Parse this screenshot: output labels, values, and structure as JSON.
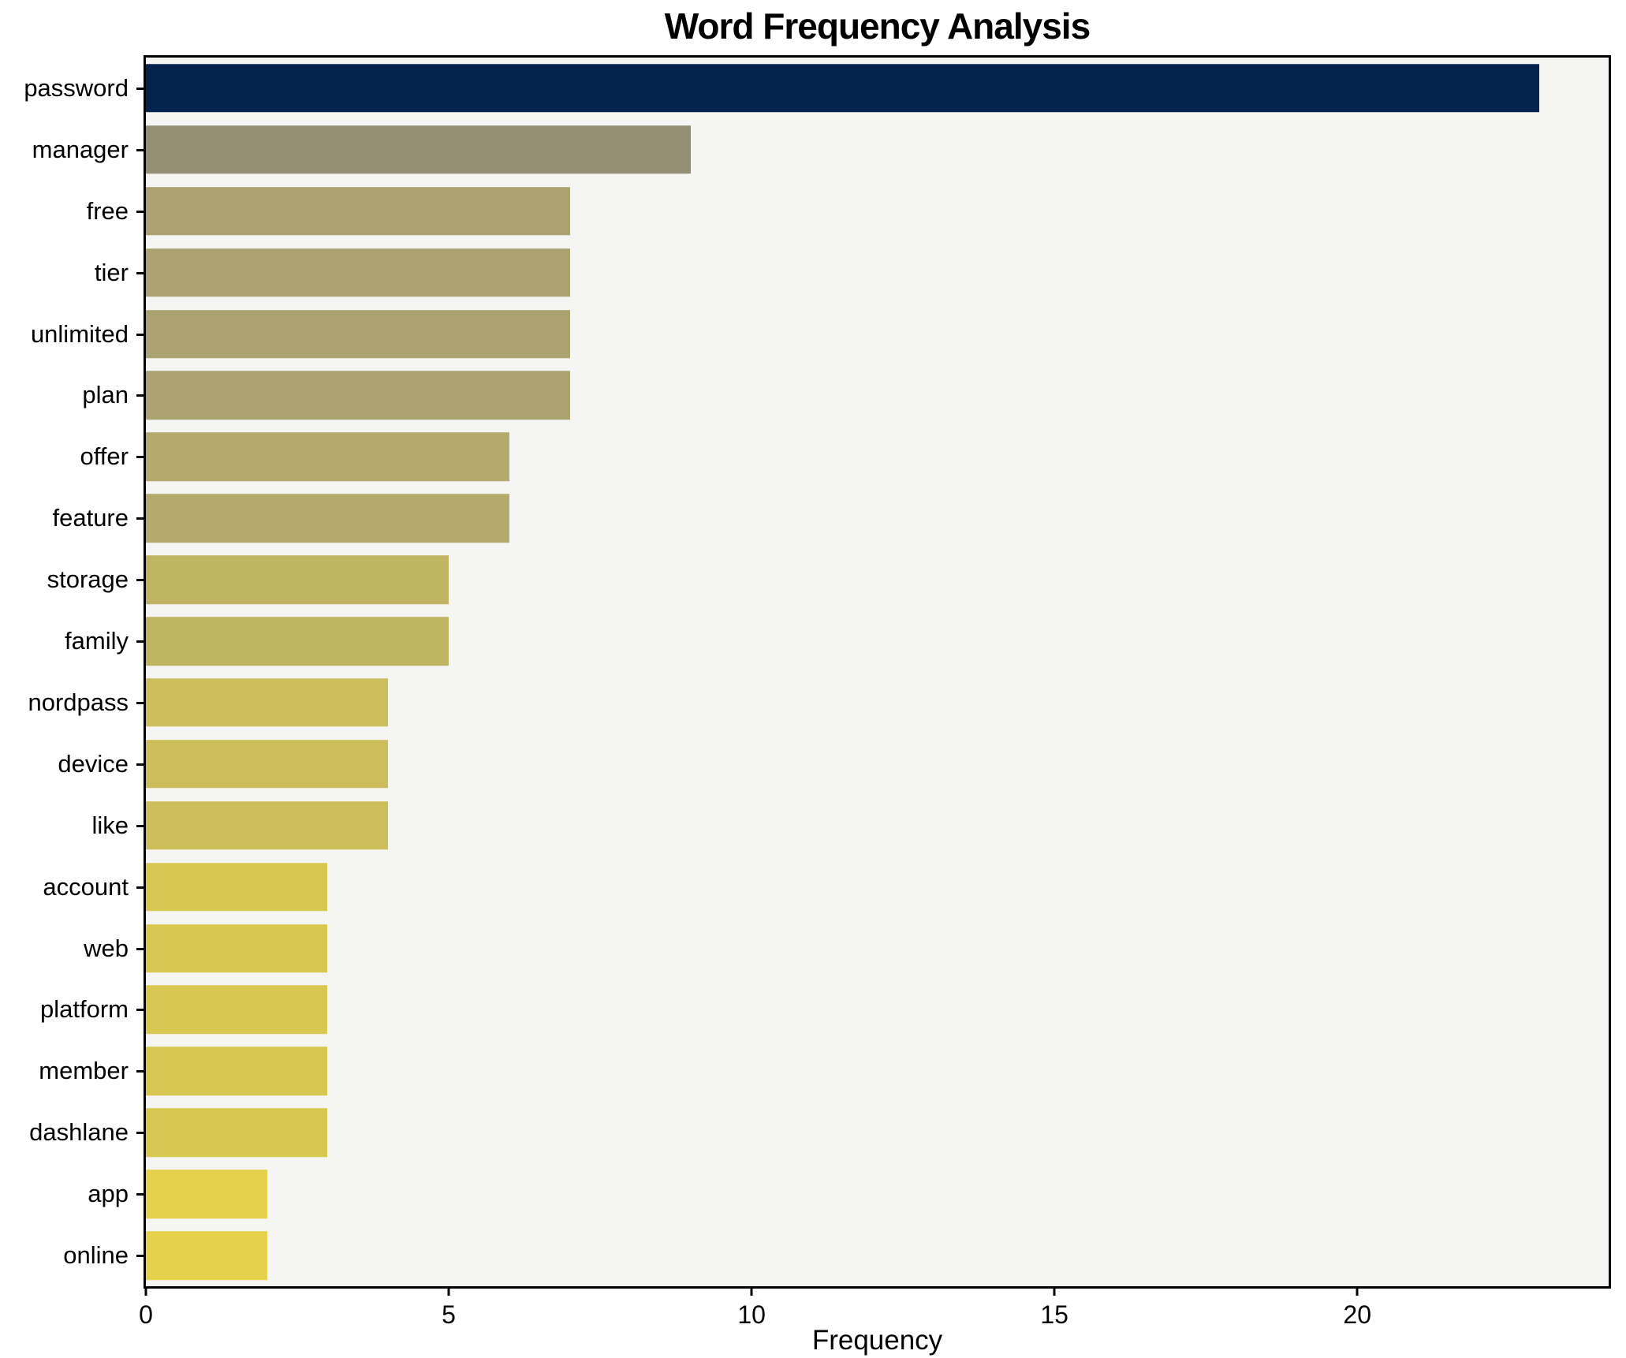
{
  "chart_data": {
    "type": "bar",
    "orientation": "horizontal",
    "title": "Word Frequency Analysis",
    "xlabel": "Frequency",
    "ylabel": "",
    "categories": [
      "password",
      "manager",
      "free",
      "tier",
      "unlimited",
      "plan",
      "offer",
      "feature",
      "storage",
      "family",
      "nordpass",
      "device",
      "like",
      "account",
      "web",
      "platform",
      "member",
      "dashlane",
      "app",
      "online"
    ],
    "values": [
      23,
      9,
      7,
      7,
      7,
      7,
      6,
      6,
      5,
      5,
      4,
      4,
      4,
      3,
      3,
      3,
      3,
      3,
      2,
      2
    ],
    "bar_colors": [
      "#02234e",
      "#948e75",
      "#aaa370",
      "#aaa370",
      "#aaa370",
      "#aaa370",
      "#b3aa6c",
      "#b3aa6c",
      "#c0b463",
      "#c0b463",
      "#ccbe5b",
      "#ccbe5b",
      "#ccbe5b",
      "#d8c751",
      "#d8c751",
      "#d8c751",
      "#d8c751",
      "#d8c751",
      "#e5d14b",
      "#e5d14b"
    ],
    "xlim": [
      0,
      24.15
    ],
    "xticks": [
      0,
      5,
      10,
      15,
      20
    ],
    "grid": false,
    "legend": null,
    "plot_background": "#f5f5f4",
    "figure_background": "#ffffff",
    "spine_color": "#000000",
    "text_color": "#000000"
  }
}
